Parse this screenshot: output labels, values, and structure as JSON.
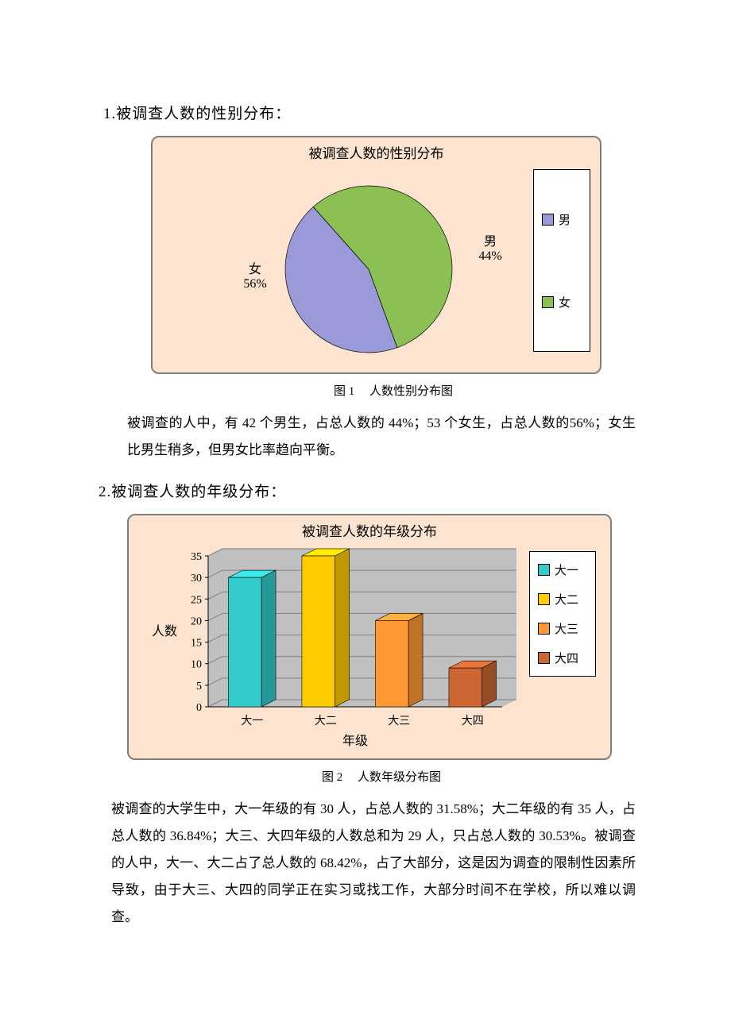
{
  "section1": {
    "heading": "1.被调查人数的性别分布：",
    "caption": "图 1　 人数性别分布图",
    "body": "被调查的人中，有 42 个男生，占总人数的 44%；53 个女生，占总人数的56%；女生比男生稍多，但男女比率趋向平衡。"
  },
  "pie_chart": {
    "type": "pie",
    "title": "被调查人数的性别分布",
    "background_color": "#fde4d0",
    "slices": [
      {
        "key": "male",
        "label": "男",
        "percent_label": "44%",
        "value": 44,
        "color": "#9a9ad9"
      },
      {
        "key": "female",
        "label": "女",
        "percent_label": "56%",
        "value": 56,
        "color": "#8ac054"
      }
    ],
    "start_angle_deg": 70,
    "radius": 105,
    "title_fontsize": 17,
    "label_fontsize": 16,
    "legend": {
      "items": [
        "男",
        "女"
      ],
      "colors": [
        "#9a9ad9",
        "#8ac054"
      ],
      "position": "right"
    }
  },
  "section2": {
    "heading": "2.被调查人数的年级分布：",
    "caption": "图 2　 人数年级分布图",
    "body": "被调查的大学生中，大一年级的有 30 人，占总人数的 31.58%；大二年级的有 35 人，占总人数的 36.84%；大三、大四年级的人数总和为 29 人，只占总人数的 30.53%。被调查的人中，大一、大二占了总人数的 68.42%，占了大部分，这是因为调查的限制性因素所导致，由于大三、大四的同学正在实习或找工作，大部分时间不在学校，所以难以调查。"
  },
  "bar_chart": {
    "type": "bar-3d",
    "title": "被调查人数的年级分布",
    "background_color": "#fde4d0",
    "plot_bg_color": "#c0c0c0",
    "categories": [
      "大一",
      "大二",
      "大三",
      "大四"
    ],
    "values": [
      30,
      35,
      20,
      9
    ],
    "bar_colors": [
      "#33cccc",
      "#ffcc00",
      "#ff9933",
      "#cc6633"
    ],
    "ylim": [
      0,
      35
    ],
    "ytick_step": 5,
    "yticks": [
      0,
      5,
      10,
      15,
      20,
      25,
      30,
      35
    ],
    "bar_width": 0.45,
    "ylabel": "人数",
    "xlabel": "年级",
    "title_fontsize": 17,
    "label_fontsize": 16,
    "tick_fontsize": 14,
    "grid_color": "#808080",
    "legend": {
      "items": [
        "大一",
        "大二",
        "大三",
        "大四"
      ],
      "colors": [
        "#33cccc",
        "#ffcc00",
        "#ff9933",
        "#cc6633"
      ],
      "position": "right"
    }
  }
}
